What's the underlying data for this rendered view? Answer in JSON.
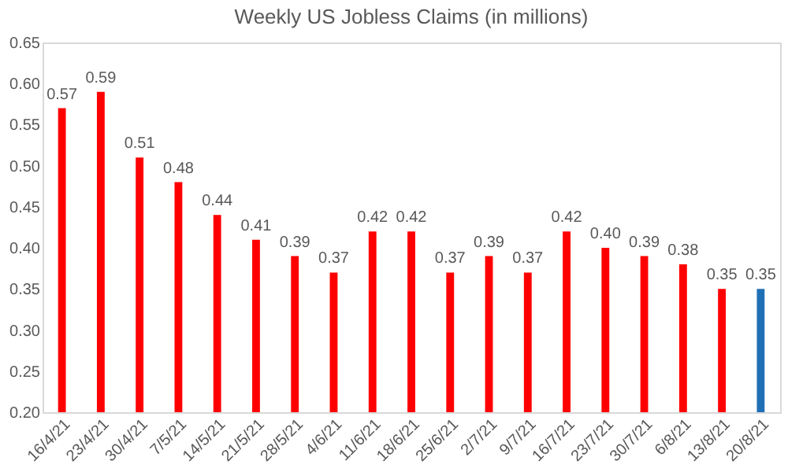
{
  "chart_data": {
    "type": "bar",
    "title": "Weekly US Jobless Claims (in millions)",
    "categories": [
      "16/4/21",
      "23/4/21",
      "30/4/21",
      "7/5/21",
      "14/5/21",
      "21/5/21",
      "28/5/21",
      "4/6/21",
      "11/6/21",
      "18/6/21",
      "25/6/21",
      "2/7/21",
      "9/7/21",
      "16/7/21",
      "23/7/21",
      "30/7/21",
      "6/8/21",
      "13/8/21",
      "20/8/21"
    ],
    "values": [
      0.57,
      0.59,
      0.51,
      0.48,
      0.44,
      0.41,
      0.39,
      0.37,
      0.42,
      0.42,
      0.37,
      0.39,
      0.37,
      0.42,
      0.4,
      0.39,
      0.38,
      0.35,
      0.35
    ],
    "colors": [
      "#ff0000",
      "#ff0000",
      "#ff0000",
      "#ff0000",
      "#ff0000",
      "#ff0000",
      "#ff0000",
      "#ff0000",
      "#ff0000",
      "#ff0000",
      "#ff0000",
      "#ff0000",
      "#ff0000",
      "#ff0000",
      "#ff0000",
      "#ff0000",
      "#ff0000",
      "#ff0000",
      "#1f6fb5"
    ],
    "value_labels": [
      "0.57",
      "0.59",
      "0.51",
      "0.48",
      "0.44",
      "0.41",
      "0.39",
      "0.37",
      "0.42",
      "0.42",
      "0.37",
      "0.39",
      "0.37",
      "0.42",
      "0.40",
      "0.39",
      "0.38",
      "0.35",
      "0.35"
    ],
    "ylim": [
      0.2,
      0.65
    ],
    "yticks": [
      {
        "value": 0.2,
        "label": "0.20"
      },
      {
        "value": 0.25,
        "label": "0.25"
      },
      {
        "value": 0.3,
        "label": "0.30"
      },
      {
        "value": 0.35,
        "label": "0.35"
      },
      {
        "value": 0.4,
        "label": "0.40"
      },
      {
        "value": 0.45,
        "label": "0.45"
      },
      {
        "value": 0.5,
        "label": "0.50"
      },
      {
        "value": 0.55,
        "label": "0.55"
      },
      {
        "value": 0.6,
        "label": "0.60"
      },
      {
        "value": 0.65,
        "label": "0.65"
      }
    ],
    "grid": false
  }
}
